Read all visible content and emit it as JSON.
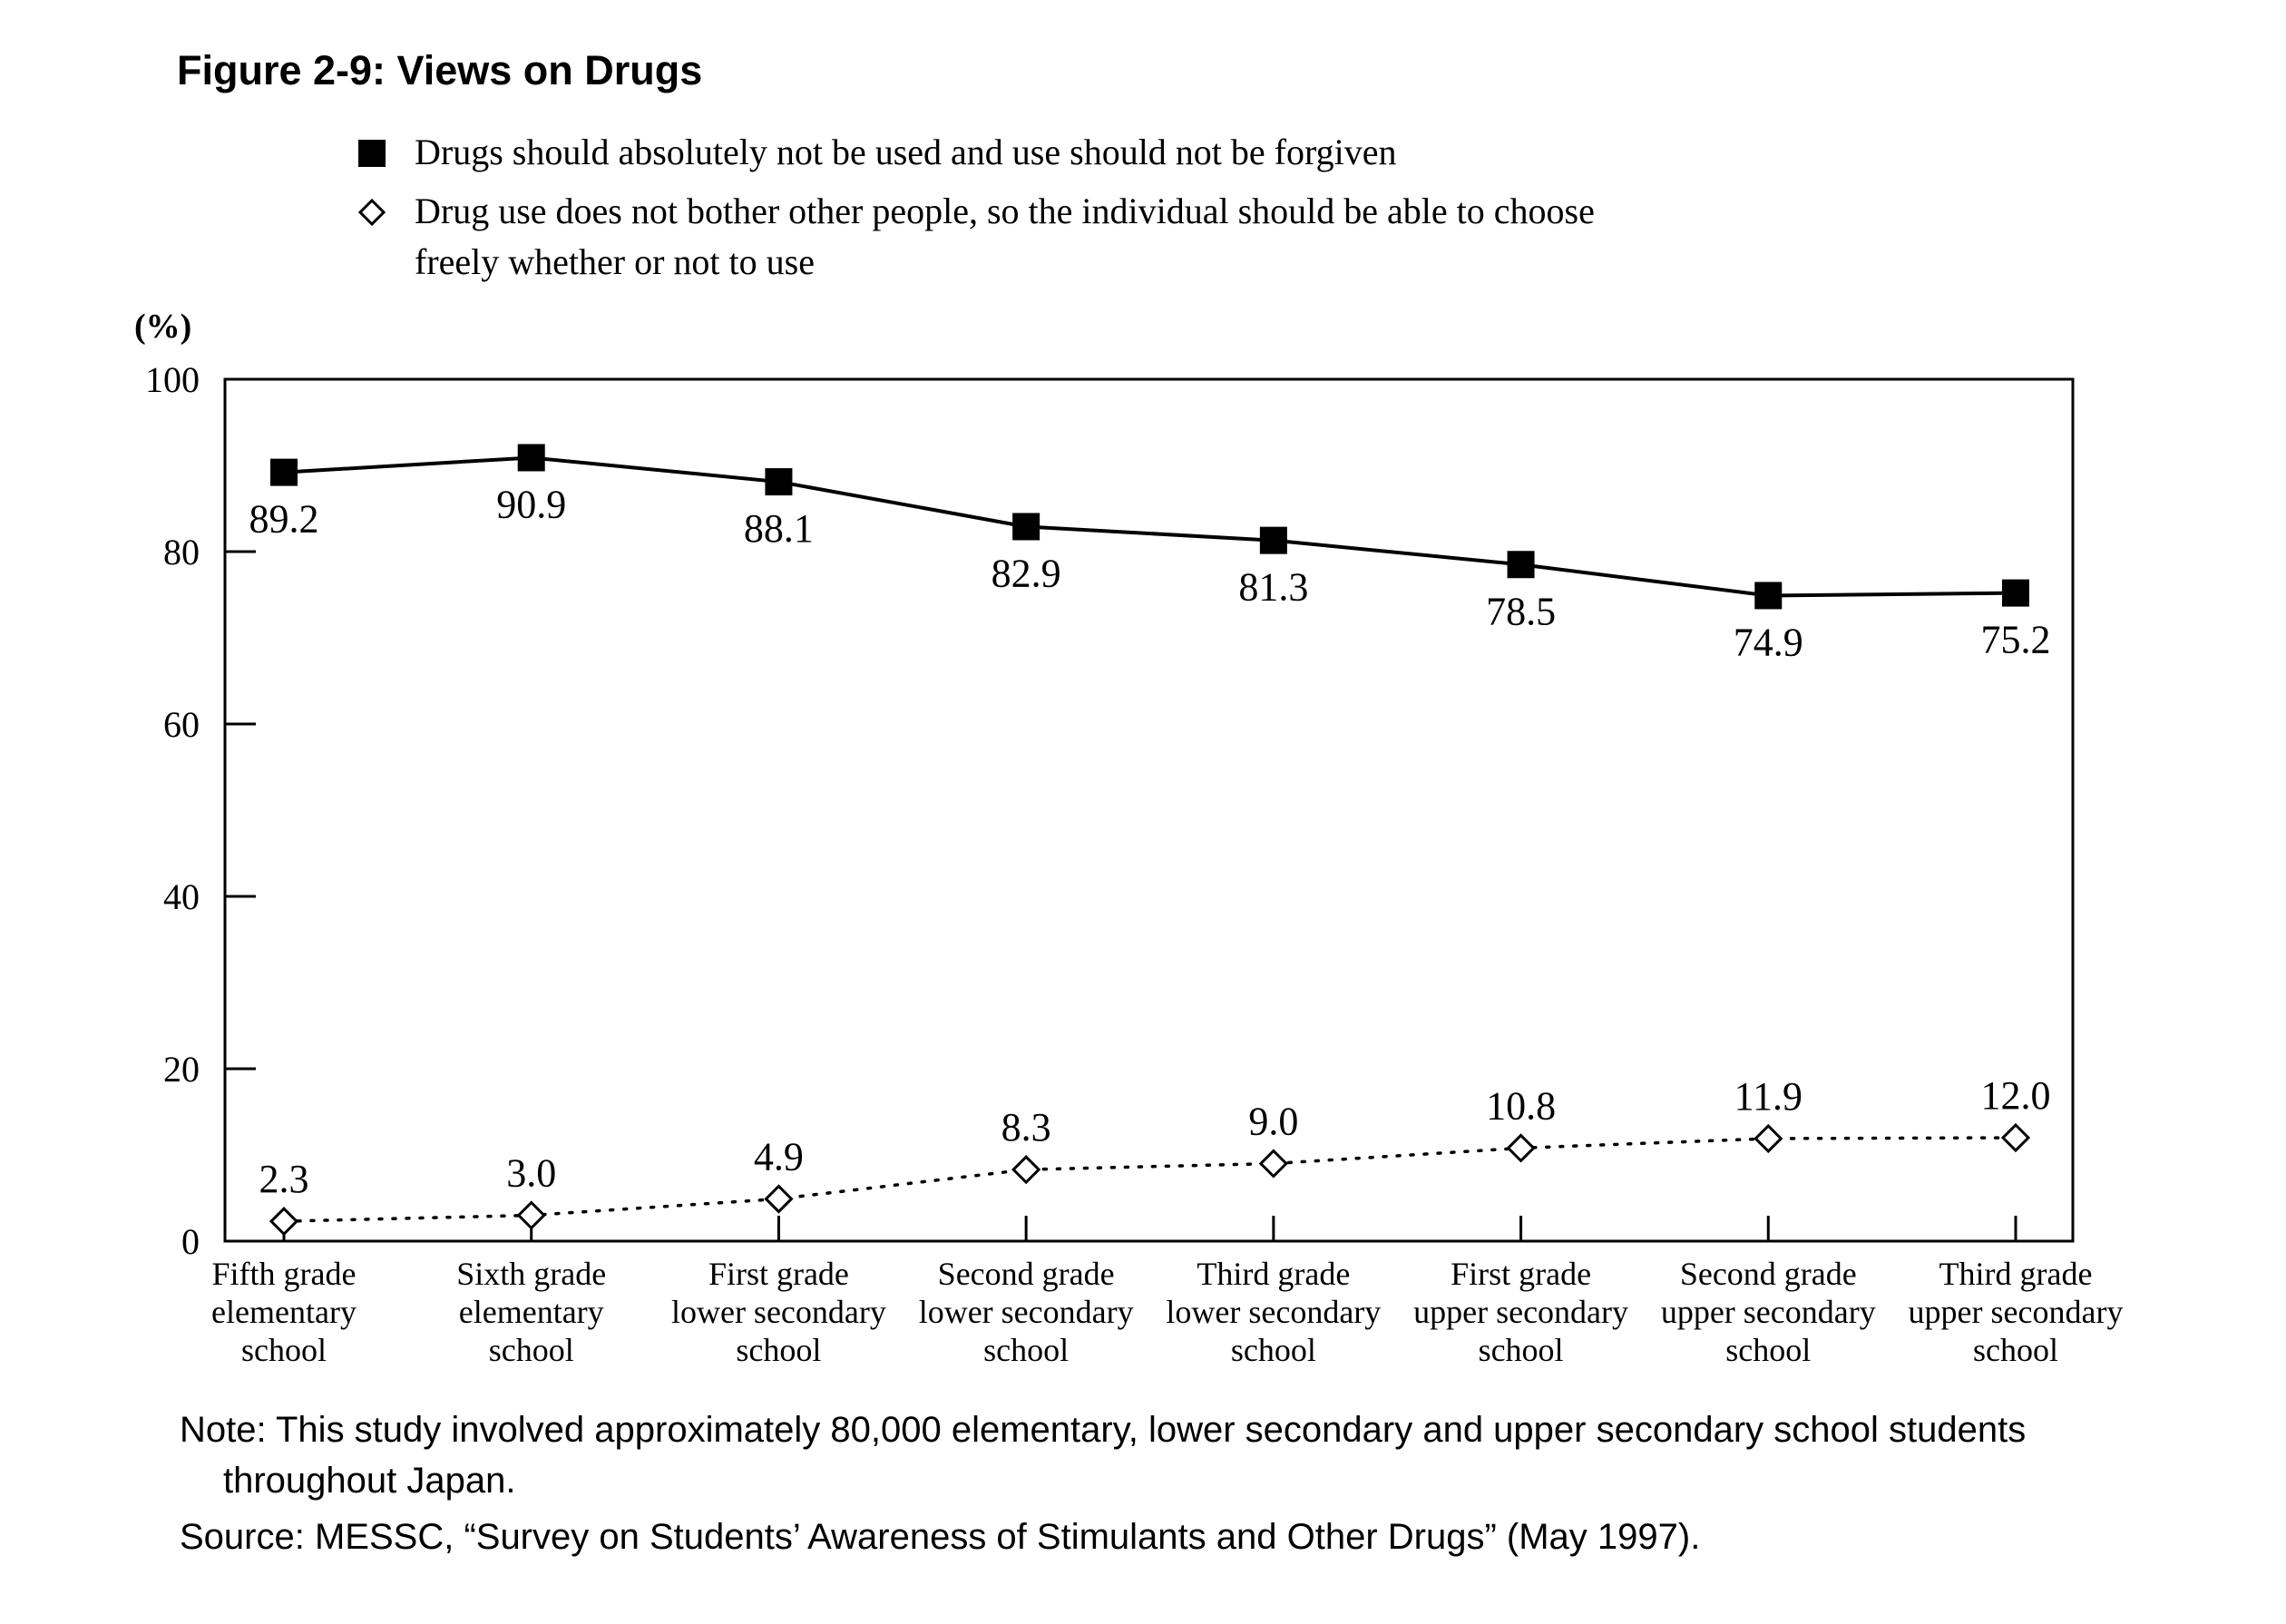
{
  "title": "Figure 2-9: Views on Drugs",
  "legend": {
    "series1": "Drugs should absolutely not be used and use should not be forgiven",
    "series2_line1": "Drug use does not bother other people, so the individual should be able to choose",
    "series2_line2": "freely whether or not to use"
  },
  "note_line1": "Note: This study involved approximately 80,000 elementary, lower secondary and upper secondary school students",
  "note_line2": "throughout Japan.",
  "source": "Source: MESSC, “Survey on Students’ Awareness of Stimulants and Other Drugs” (May 1997).",
  "chart_data": {
    "type": "line",
    "ylabel": "(%)",
    "ylim": [
      0,
      100
    ],
    "yticks": [
      0,
      20,
      40,
      60,
      80,
      100
    ],
    "categories": [
      [
        "Fifth grade",
        "elementary",
        "school"
      ],
      [
        "Sixth grade",
        "elementary",
        "school"
      ],
      [
        "First grade",
        "lower secondary",
        "school"
      ],
      [
        "Second grade",
        "lower secondary",
        "school"
      ],
      [
        "Third grade",
        "lower secondary",
        "school"
      ],
      [
        "First grade",
        "upper secondary",
        "school"
      ],
      [
        "Second grade",
        "upper secondary",
        "school"
      ],
      [
        "Third grade",
        "upper secondary",
        "school"
      ]
    ],
    "series": [
      {
        "name": "Drugs should absolutely not be used and use should not be forgiven",
        "marker": "filled-square",
        "line": "solid",
        "values": [
          89.2,
          90.9,
          88.1,
          82.9,
          81.3,
          78.5,
          74.9,
          75.2
        ]
      },
      {
        "name": "Drug use does not bother other people, so the individual should be able to choose freely whether or not to use",
        "marker": "open-diamond",
        "line": "dotted",
        "values": [
          2.3,
          3.0,
          4.9,
          8.3,
          9.0,
          10.8,
          11.9,
          12.0
        ]
      }
    ]
  }
}
